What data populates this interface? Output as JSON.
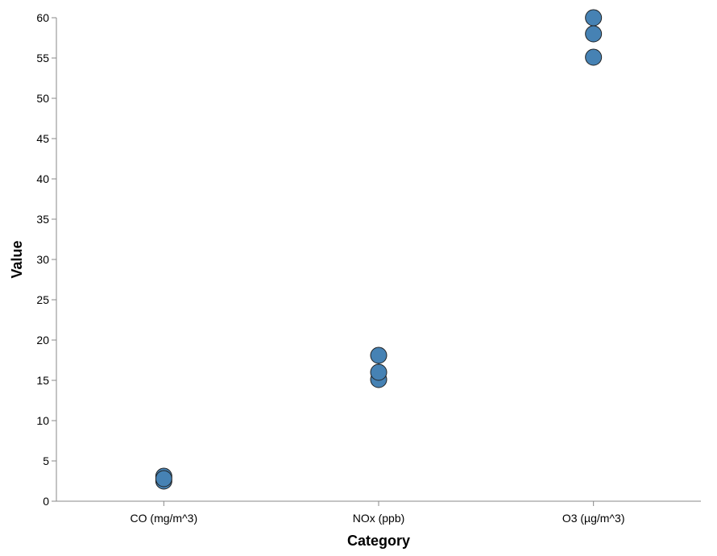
{
  "chart_data": {
    "type": "scatter",
    "xlabel": "Category",
    "ylabel": "Value",
    "categories": [
      "CO (mg/m^3)",
      "NOx (ppb)",
      "O3 (µg/m^3)"
    ],
    "ylim": [
      0,
      60
    ],
    "yticks": [
      0,
      5,
      10,
      15,
      20,
      25,
      30,
      35,
      40,
      45,
      50,
      55,
      60
    ],
    "grid": false,
    "point_color": "#4682b4",
    "points": [
      {
        "category": "CO (mg/m^3)",
        "value": 2.5
      },
      {
        "category": "CO (mg/m^3)",
        "value": 3.1
      },
      {
        "category": "CO (mg/m^3)",
        "value": 2.8
      },
      {
        "category": "NOx (ppb)",
        "value": 15.1
      },
      {
        "category": "NOx (ppb)",
        "value": 18.1
      },
      {
        "category": "NOx (ppb)",
        "value": 16.0
      },
      {
        "category": "O3 (µg/m^3)",
        "value": 55.1
      },
      {
        "category": "O3 (µg/m^3)",
        "value": 58.0
      },
      {
        "category": "O3 (µg/m^3)",
        "value": 60.0
      }
    ]
  }
}
